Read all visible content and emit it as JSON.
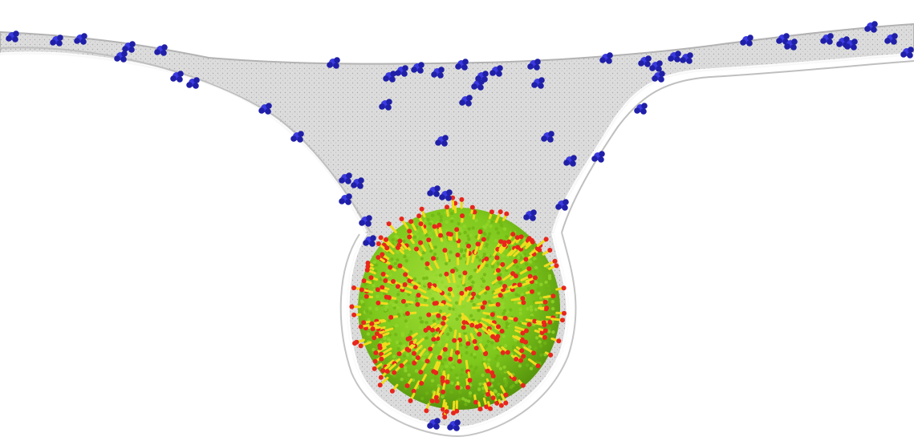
{
  "scene": {
    "description_free": true,
    "palette": {
      "background": "#ffffff",
      "membrane_fill": "#d9d9d9",
      "membrane_edge": "#b3b3b3",
      "membrane_dots": "#9a9a9a",
      "lipid_blue": "#3a3ae0",
      "lipid_blue_dark": "#1f1fa8",
      "nanoparticle_green": "#7ec81c",
      "nanoparticle_dark": "#4e8a0a",
      "ligand_red": "#e8261c",
      "ligand_yellow": "#f0dc1e"
    },
    "icons": [
      "membrane-sheet",
      "receptor-molecule",
      "coated-nanoparticle"
    ]
  }
}
